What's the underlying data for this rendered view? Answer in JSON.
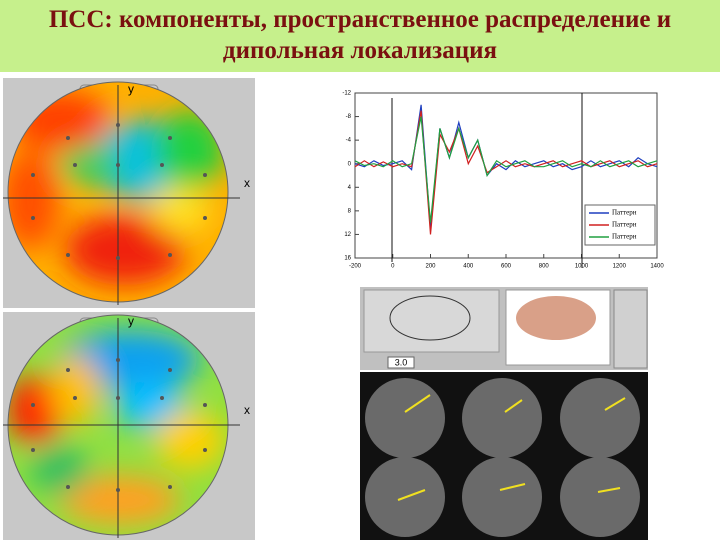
{
  "title": [
    "ПСС: компоненты, пространственное распределение и",
    "дипольная локализация"
  ],
  "topomaps": [
    {
      "x_label": "x",
      "y_label": "y"
    },
    {
      "x_label": "x",
      "y_label": "y"
    }
  ],
  "viewer": {
    "value": "3.0"
  },
  "chart_data": {
    "type": "line",
    "x": [
      -200,
      -150,
      -100,
      -50,
      0,
      50,
      100,
      150,
      200,
      250,
      300,
      350,
      400,
      450,
      500,
      550,
      600,
      650,
      700,
      750,
      800,
      850,
      900,
      950,
      1000,
      1050,
      1100,
      1150,
      1200,
      1250,
      1300,
      1350,
      1400
    ],
    "series": [
      {
        "name": "Паттерн",
        "color": "#1f3fbf",
        "values": [
          0,
          0.5,
          -0.5,
          0.3,
          0,
          -0.5,
          1,
          -10,
          11,
          -6,
          -1,
          -7,
          -1,
          -4,
          2,
          0,
          1,
          -0.5,
          0.5,
          0,
          -0.5,
          0.5,
          0,
          1,
          0.5,
          -0.5,
          0.5,
          0,
          -0.5,
          0.5,
          -1,
          0,
          0.5
        ]
      },
      {
        "name": "Паттерн",
        "color": "#d02020",
        "values": [
          0.5,
          -0.5,
          0.5,
          -0.3,
          0.5,
          0,
          0.5,
          -9,
          12,
          -5,
          -2,
          -6,
          0,
          -3,
          1.5,
          0.5,
          -0.5,
          0.5,
          0,
          0.5,
          0,
          -0.5,
          0.5,
          0,
          -0.5,
          0.5,
          0,
          -0.5,
          0.5,
          0,
          -0.5,
          0.5,
          0
        ]
      },
      {
        "name": "Паттерн",
        "color": "#20a040",
        "values": [
          -0.5,
          0.3,
          0,
          0.5,
          -0.5,
          0.5,
          0,
          -8,
          10,
          -6,
          -1,
          -6,
          -1,
          -4,
          2,
          -0.5,
          0.5,
          0,
          -0.5,
          0.5,
          0.5,
          0,
          -0.5,
          0.5,
          0,
          0.5,
          -0.5,
          0.5,
          0,
          -0.5,
          0.5,
          0,
          -0.5
        ]
      }
    ],
    "xlim": [
      -200,
      1400
    ],
    "xticks": [
      -200,
      0,
      200,
      400,
      600,
      800,
      1000,
      1200,
      1400
    ],
    "ylim": [
      -12,
      16
    ],
    "yticks": [
      -12,
      -8,
      -4,
      0,
      4,
      8,
      12,
      16
    ],
    "y_inverted": true
  }
}
